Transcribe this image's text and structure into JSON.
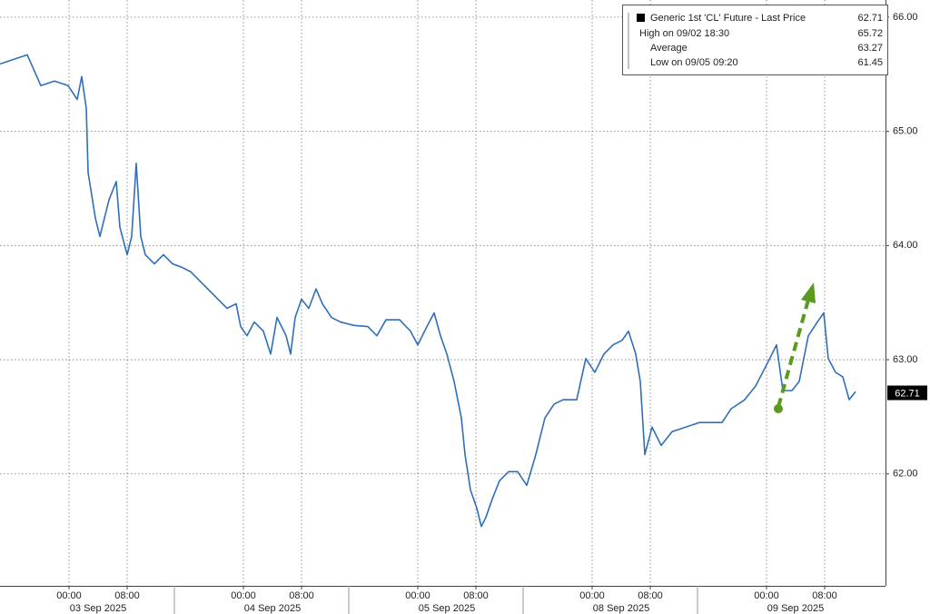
{
  "chart_data": {
    "type": "line",
    "legend": {
      "series_label": "Generic 1st 'CL' Future - Last Price",
      "last_value": 62.71,
      "items": [
        {
          "label": "High on 09/02 18:30",
          "value": 65.72
        },
        {
          "label": "Average",
          "value": 63.27
        },
        {
          "label": "Low on 09/05 09:20",
          "value": 61.45
        }
      ]
    },
    "series": [
      {
        "name": "Generic 1st 'CL' Future - Last Price",
        "color": "#2f6fb8",
        "x": [
          -9.5,
          -7.625,
          -5.75,
          -3.875,
          -2,
          -0.125,
          1.125,
          1.75,
          2.375,
          2.625,
          3.625,
          4.25,
          5.5,
          6.5,
          7,
          8,
          8.625,
          9.25,
          9.875,
          10.5,
          11.75,
          13,
          14.25,
          15.5,
          16.75,
          18,
          19.25,
          20.5,
          21.75,
          23,
          23.625,
          24.5,
          25.5,
          26.75,
          27.75,
          28.625,
          29.875,
          30.5,
          31.125,
          32,
          33,
          34,
          34.875,
          36.125,
          37.375,
          39.25,
          41.125,
          42.375,
          43.625,
          45.5,
          47,
          48,
          49.25,
          50.25,
          51.125,
          52,
          53,
          54,
          54.5,
          55.25,
          56.125,
          56.75,
          57.375,
          58.25,
          59.25,
          60.5,
          61.75,
          63,
          64.25,
          65.5,
          66.75,
          68,
          69.875,
          71.125,
          72.375,
          73.625,
          74.875,
          76.125,
          77,
          78,
          78.625,
          79.25,
          80.25,
          81.5,
          83,
          84.875,
          86.75,
          88.625,
          89.875,
          91.125,
          93,
          94.5,
          96.125,
          97.375,
          98.25,
          99.5,
          100.5,
          101.75,
          103,
          103.875,
          104.5,
          105.5,
          106.5,
          107.375,
          108.25
        ],
        "values": [
          65.59,
          65.63,
          65.67,
          65.4,
          65.44,
          65.4,
          65.28,
          65.48,
          65.2,
          64.64,
          64.24,
          64.08,
          64.4,
          64.56,
          64.16,
          63.92,
          64.08,
          64.72,
          64.08,
          63.92,
          63.84,
          63.92,
          63.84,
          63.81,
          63.77,
          63.69,
          63.61,
          63.53,
          63.45,
          63.49,
          63.29,
          63.21,
          63.33,
          63.25,
          63.05,
          63.37,
          63.21,
          63.05,
          63.37,
          63.53,
          63.45,
          63.62,
          63.49,
          63.37,
          63.33,
          63.3,
          63.29,
          63.21,
          63.35,
          63.35,
          63.25,
          63.13,
          63.29,
          63.41,
          63.21,
          63.05,
          62.81,
          62.49,
          62.17,
          61.86,
          61.7,
          61.54,
          61.62,
          61.78,
          61.94,
          62.02,
          62.02,
          61.9,
          62.17,
          62.49,
          62.61,
          62.65,
          62.65,
          63.01,
          62.89,
          63.05,
          63.13,
          63.17,
          63.25,
          63.05,
          62.81,
          62.17,
          62.41,
          62.25,
          62.37,
          62.41,
          62.45,
          62.45,
          62.45,
          62.57,
          62.65,
          62.77,
          62.97,
          63.13,
          62.73,
          62.73,
          62.81,
          63.21,
          63.33,
          63.41,
          63.01,
          62.89,
          62.85,
          62.65,
          62.72
        ]
      }
    ],
    "xlim": [
      -9.5,
      112.375
    ],
    "ylim": [
      61.02,
      66.15
    ],
    "xticks": [
      {
        "value": 0,
        "label": "00:00"
      },
      {
        "value": 8,
        "label": "08:00"
      },
      {
        "value": 24,
        "label": "00:00"
      },
      {
        "value": 32,
        "label": "08:00"
      },
      {
        "value": 48,
        "label": "00:00"
      },
      {
        "value": 56,
        "label": "08:00"
      },
      {
        "value": 72,
        "label": "00:00"
      },
      {
        "value": 80,
        "label": "08:00"
      },
      {
        "value": 96,
        "label": "00:00"
      },
      {
        "value": 104,
        "label": "08:00"
      }
    ],
    "xdates": [
      {
        "value": 4,
        "label": "03 Sep 2025"
      },
      {
        "value": 28,
        "label": "04 Sep 2025"
      },
      {
        "value": 52,
        "label": "05 Sep 2025"
      },
      {
        "value": 76,
        "label": "08 Sep 2025"
      },
      {
        "value": 100,
        "label": "09 Sep 2025"
      }
    ],
    "yticks": [
      {
        "value": 62,
        "label": "62.00"
      },
      {
        "value": 63,
        "label": "63.00"
      },
      {
        "value": 64,
        "label": "64.00"
      },
      {
        "value": 65,
        "label": "65.00"
      },
      {
        "value": 66,
        "label": "66.00"
      }
    ],
    "grid": true
  }
}
